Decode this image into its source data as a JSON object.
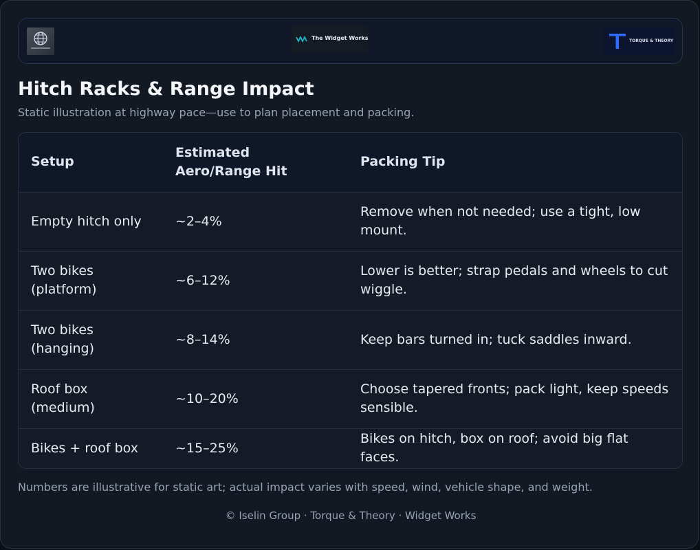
{
  "header": {
    "logos": {
      "left": {
        "icon": "globe-icon"
      },
      "center": {
        "text": "The Widget Works",
        "icon": "wave-icon",
        "accent": "#22b8cf"
      },
      "right": {
        "text": "TORQUE & THEORY",
        "accent": "#2f6bff"
      }
    }
  },
  "page": {
    "title": "Hitch Racks & Range Impact",
    "subtitle": "Static illustration at highway pace—use to plan placement and packing."
  },
  "table": {
    "headers": [
      "Setup",
      "Estimated Aero/Range Hit",
      "Packing Tip"
    ],
    "rows": [
      [
        "Empty hitch only",
        "~2–4%",
        "Remove when not needed; use a tight, low mount."
      ],
      [
        "Two bikes (platform)",
        "~6–12%",
        "Lower is better; strap pedals and wheels to cut wiggle."
      ],
      [
        "Two bikes (hanging)",
        "~8–14%",
        "Keep bars turned in; tuck saddles inward."
      ],
      [
        "Roof box (medium)",
        "~10–20%",
        "Choose tapered fronts; pack light, keep speeds sensible."
      ],
      [
        "Bikes + roof box",
        "~15–25%",
        "Bikes on hitch, box on roof; avoid big flat faces."
      ]
    ]
  },
  "footnote": "Numbers are illustrative for static art; actual impact varies with speed, wind, vehicle shape, and weight.",
  "credits": "© Iselin Group · Torque & Theory · Widget Works",
  "colors": {
    "background": "#121923",
    "header_band": "#0f1729",
    "text": "#e6ebf2",
    "muted": "#98a2b3"
  }
}
